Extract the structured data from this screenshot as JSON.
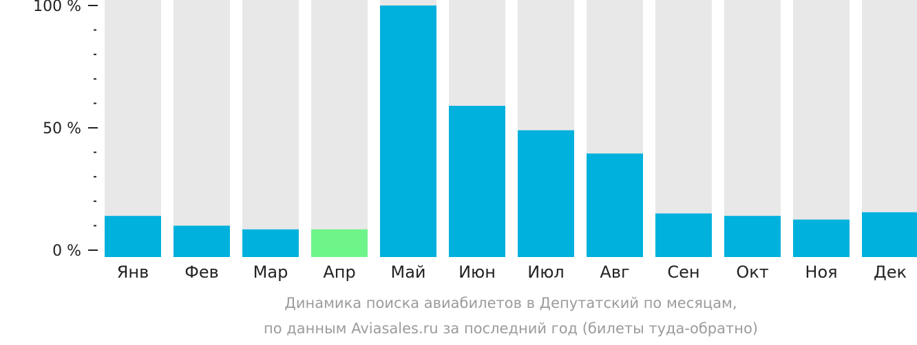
{
  "chart_data": {
    "type": "bar",
    "categories": [
      "Янв",
      "Фев",
      "Мар",
      "Апр",
      "Май",
      "Июн",
      "Июл",
      "Авг",
      "Сен",
      "Окт",
      "Ноя",
      "Дек"
    ],
    "values": [
      14,
      10,
      8.5,
      8.5,
      100,
      59,
      49,
      39.5,
      15,
      14,
      12.5,
      15.5
    ],
    "ylim": [
      0,
      100
    ],
    "y_ticks": [
      {
        "value": 0,
        "label": "0 %"
      },
      {
        "value": 50,
        "label": "50 %"
      },
      {
        "value": 100,
        "label": "100 %"
      }
    ],
    "highlight_category": "Апр",
    "colors": {
      "bar": "#00b1dd",
      "highlight": "#6df58a",
      "track": "#e8e8e8",
      "axis": "#222222"
    },
    "caption": [
      "Динамика поиска авиабилетов в Депутатский по месяцам,",
      "по данным Aviasales.ru за последний год (билеты туда-обратно)"
    ]
  }
}
